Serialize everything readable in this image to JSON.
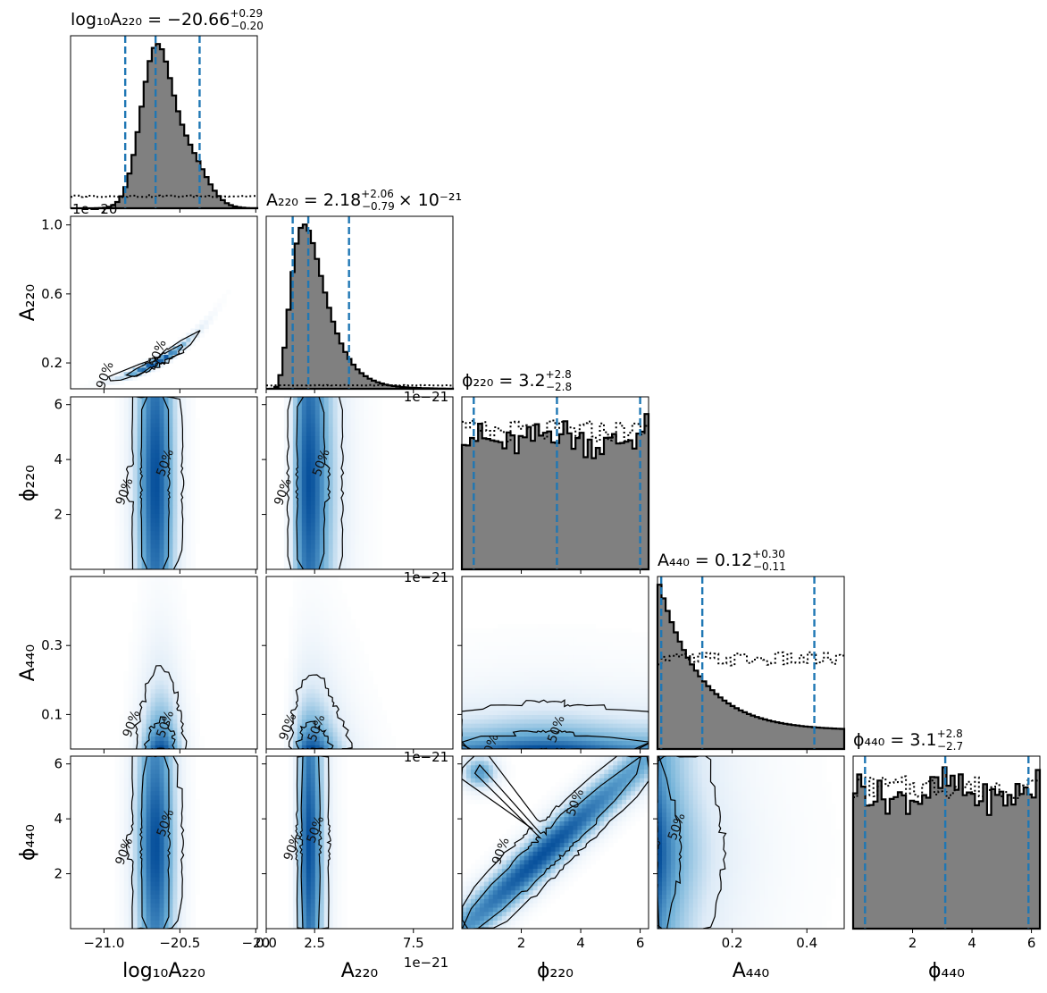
{
  "chart_data": {
    "type": "corner",
    "parameters": [
      {
        "key": "log10A220",
        "label": "log₁₀A₂₂₀",
        "title_name": "log₁₀A₂₂₀",
        "title_value": "−20.66",
        "title_plus": "+0.29",
        "title_minus": "−0.20",
        "title_suffix": "",
        "range": [
          -21.22,
          -19.99
        ],
        "ticks": [
          {
            "v": -21.0,
            "t": "−21.0"
          },
          {
            "v": -20.5,
            "t": "−20.5"
          },
          {
            "v": -20.0,
            "t": "−20"
          }
        ],
        "quantiles": [
          -20.86,
          -20.66,
          -20.37
        ],
        "offset_text": "",
        "hist": {
          "type": "gauss",
          "params": [
            [
              1.0,
              -20.66,
              0.1
            ],
            [
              0.35,
              -20.45,
              0.12
            ]
          ],
          "bins": 46
        },
        "prior_level": 0.07
      },
      {
        "key": "A220",
        "label": "A₂₂₀",
        "title_name": "A₂₂₀",
        "title_value": "2.18",
        "title_plus": "+2.06",
        "title_minus": "−0.79",
        "title_suffix": "× 10⁻²¹",
        "range": [
          0.05,
          9.5
        ],
        "ticks": [
          {
            "v": 0.05,
            "t": "0.0"
          },
          {
            "v": 2.5,
            "t": "2.5"
          },
          {
            "v": 7.5,
            "t": "7.5"
          }
        ],
        "quantiles": [
          1.39,
          2.18,
          4.24
        ],
        "offset_text": "1e−21",
        "hist": {
          "type": "lognorm",
          "mu": 0.85,
          "sigma": 0.42,
          "bins": 46
        },
        "prior_level": 0.02
      },
      {
        "key": "phi220",
        "label": "ϕ₂₂₀",
        "title_name": "ϕ₂₂₀",
        "title_value": "3.2",
        "title_plus": "+2.8",
        "title_minus": "−2.8",
        "title_suffix": "",
        "range": [
          0.0,
          6.283
        ],
        "ticks": [
          {
            "v": 2,
            "t": "2"
          },
          {
            "v": 4,
            "t": "4"
          },
          {
            "v": 6,
            "t": "6"
          }
        ],
        "quantiles": [
          0.4,
          3.2,
          6.0
        ],
        "offset_text": "",
        "hist": {
          "type": "flat",
          "level": 0.82,
          "bins": 46
        },
        "prior_level": 0.8
      },
      {
        "key": "A440",
        "label": "A₄₄₀",
        "title_name": "A₄₄₀",
        "title_value": "0.12",
        "title_plus": "+0.30",
        "title_minus": "−0.11",
        "title_suffix": "",
        "range": [
          0.0,
          0.5
        ],
        "ticks": [
          {
            "v": 0.2,
            "t": "0.2"
          },
          {
            "v": 0.4,
            "t": "0.4"
          }
        ],
        "quantiles": [
          0.01,
          0.12,
          0.42
        ],
        "offset_text": "",
        "hist": {
          "type": "expo",
          "scale": 0.11,
          "bins": 46
        },
        "prior_level": 0.4
      },
      {
        "key": "phi440",
        "label": "ϕ₄₄₀",
        "title_name": "ϕ₄₄₀",
        "title_value": "3.1",
        "title_plus": "+2.8",
        "title_minus": "−2.7",
        "title_suffix": "",
        "range": [
          0.0,
          6.283
        ],
        "ticks": [
          {
            "v": 2,
            "t": "2"
          },
          {
            "v": 4,
            "t": "4"
          },
          {
            "v": 6,
            "t": "6"
          }
        ],
        "quantiles": [
          0.4,
          3.1,
          5.9
        ],
        "offset_text": "",
        "hist": {
          "type": "flat",
          "level": 0.85,
          "bins": 46
        },
        "prior_level": 0.82
      }
    ],
    "y_axes": [
      {
        "row": 1,
        "label": "A₂₂₀",
        "range": [
          0.05,
          1.05
        ],
        "ticks": [
          {
            "v": 0.2,
            "t": "0.2"
          },
          {
            "v": 0.6,
            "t": "0.6"
          },
          {
            "v": 1.0,
            "t": "1.0"
          }
        ],
        "offset_text": "1e−20"
      },
      {
        "row": 2,
        "label": "ϕ₂₂₀",
        "range": [
          0.0,
          6.283
        ],
        "ticks": [
          {
            "v": 2,
            "t": "2"
          },
          {
            "v": 4,
            "t": "4"
          },
          {
            "v": 6,
            "t": "6"
          }
        ],
        "offset_text": ""
      },
      {
        "row": 3,
        "label": "A₄₄₀",
        "range": [
          0.0,
          0.5
        ],
        "ticks": [
          {
            "v": 0.1,
            "t": "0.1"
          },
          {
            "v": 0.3,
            "t": "0.3"
          }
        ],
        "offset_text": ""
      },
      {
        "row": 4,
        "label": "ϕ₄₄₀",
        "range": [
          0.0,
          6.283
        ],
        "ticks": [
          {
            "v": 2,
            "t": "2"
          },
          {
            "v": 4,
            "t": "4"
          },
          {
            "v": 6,
            "t": "6"
          }
        ],
        "offset_text": ""
      }
    ],
    "credible_levels": [
      "50%",
      "90%"
    ],
    "colors": {
      "hist_fill": "#808080",
      "hist_edge": "#000000",
      "quantile": "#1f77b4",
      "density": "#08519c"
    },
    "histogram_type": "step-filled",
    "prior_line_style": "dotted"
  }
}
